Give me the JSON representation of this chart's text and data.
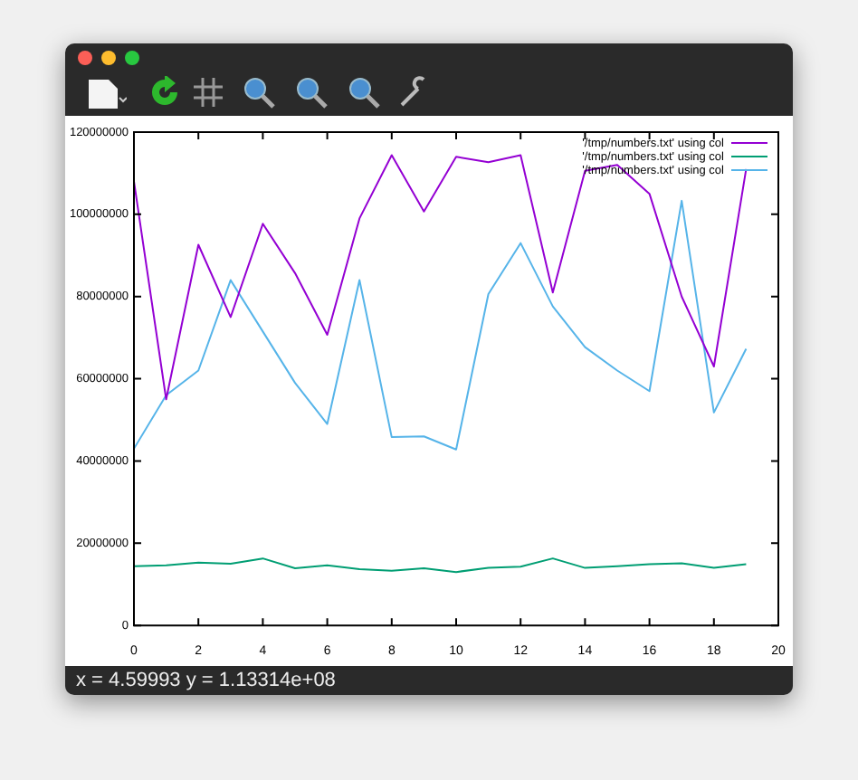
{
  "chart_data": {
    "type": "line",
    "x": [
      0,
      1,
      2,
      3,
      4,
      5,
      6,
      7,
      8,
      9,
      10,
      11,
      12,
      13,
      14,
      15,
      16,
      17,
      18,
      19
    ],
    "series": [
      {
        "name": "'/tmp/numbers.txt' using col",
        "color": "#9400d3",
        "values": [
          108000000,
          55000000,
          92600000,
          75000000,
          97700000,
          85700000,
          70700000,
          99000000,
          114400000,
          100700000,
          114000000,
          112700000,
          114400000,
          81000000,
          110600000,
          112000000,
          105000000,
          80000000,
          63000000,
          111000000
        ]
      },
      {
        "name": "'/tmp/numbers.txt' using col",
        "color": "#009e73",
        "values": [
          14400000,
          14600000,
          15300000,
          15000000,
          16300000,
          13900000,
          14600000,
          13700000,
          13300000,
          13900000,
          13000000,
          14000000,
          14300000,
          16300000,
          14000000,
          14400000,
          14900000,
          15100000,
          14000000,
          14900000
        ]
      },
      {
        "name": "'/tmp/numbers.txt' using col",
        "color": "#56b4e9",
        "values": [
          43000000,
          56000000,
          62000000,
          84000000,
          71500000,
          59000000,
          49000000,
          84000000,
          45800000,
          46000000,
          42800000,
          80600000,
          93000000,
          77600000,
          67700000,
          62000000,
          57000000,
          103300000,
          51800000,
          67300000
        ]
      }
    ],
    "xlim": [
      0,
      20
    ],
    "xticks": [
      0,
      2,
      4,
      6,
      8,
      10,
      12,
      14,
      16,
      18,
      20
    ],
    "ylim": [
      0,
      120000000
    ],
    "yticks": [
      0,
      20000000,
      40000000,
      60000000,
      80000000,
      100000000,
      120000000
    ],
    "grid": false,
    "legend": "top right",
    "annotations": [
      "x = 4.59993 y = 1.13314e+08"
    ]
  }
}
